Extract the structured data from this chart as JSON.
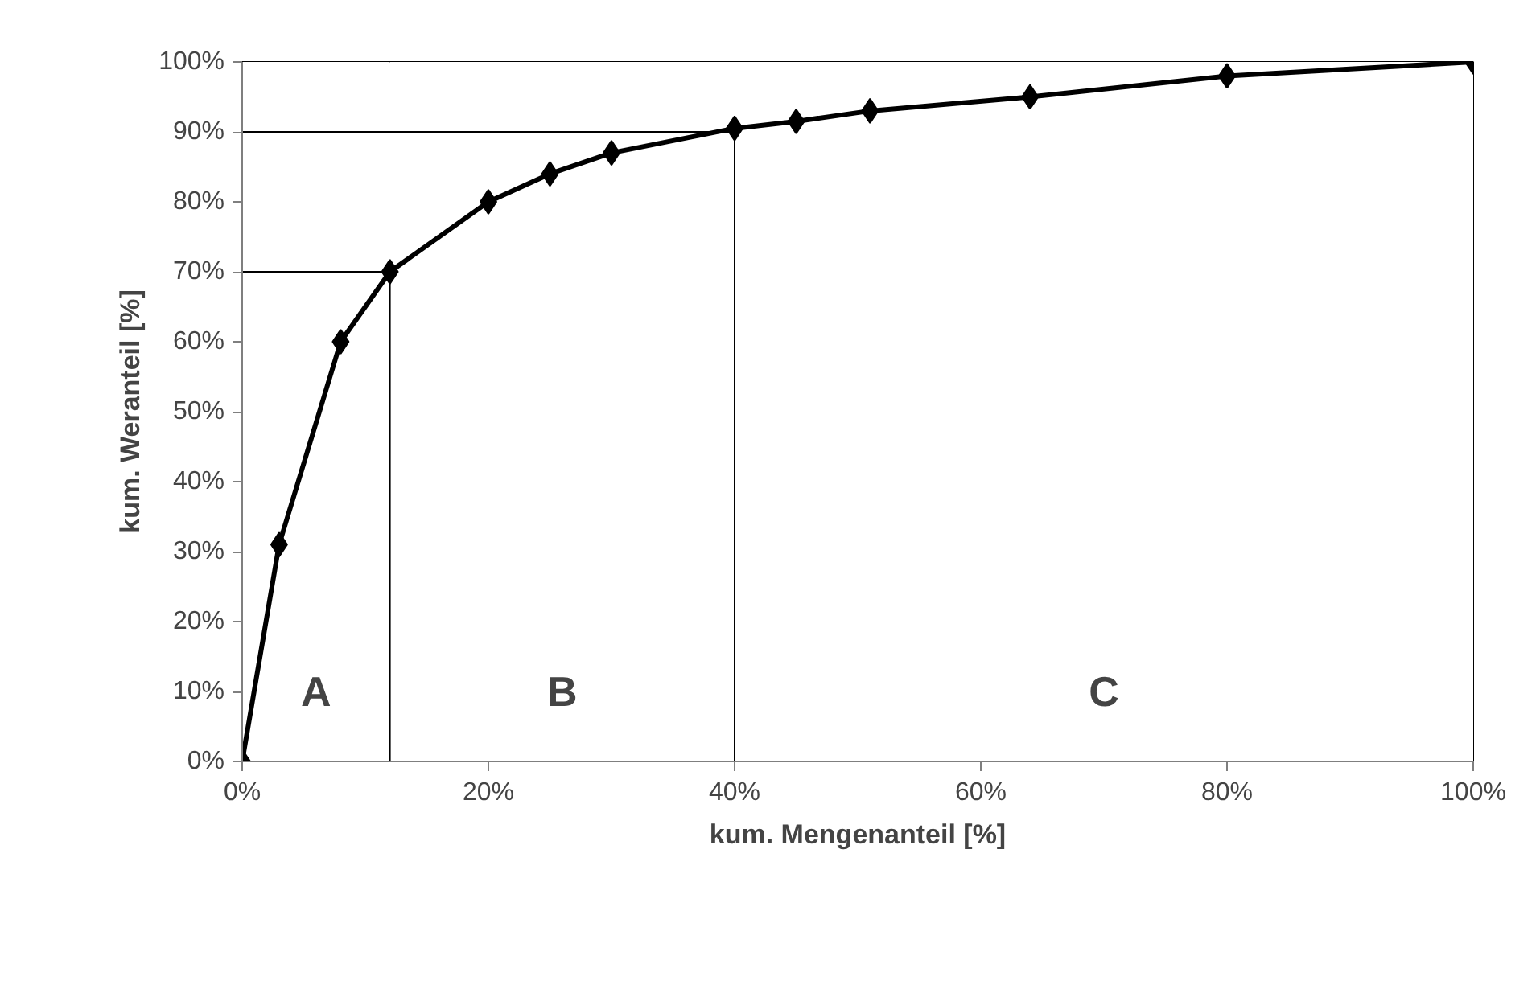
{
  "chart_data": {
    "type": "line",
    "xlabel": "kum. Mengenanteil [%]",
    "ylabel": "kum. Weranteil [%]",
    "marker": "diamond",
    "line_style": "solid",
    "grid": false,
    "x": [
      0,
      3,
      8,
      12,
      20,
      25,
      30,
      40,
      45,
      51,
      64,
      80,
      100
    ],
    "series": [
      {
        "color": "#000000",
        "values": [
          0,
          31,
          60,
          70,
          80,
          84,
          87,
          90.5,
          91.5,
          93,
          95,
          98,
          100
        ]
      },
      {
        "color": "#000000",
        "marker": "none",
        "x": [
          0,
          12,
          12
        ],
        "values": [
          70,
          70,
          0
        ]
      },
      {
        "color": "#000000",
        "marker": "none",
        "x": [
          0,
          40,
          40
        ],
        "values": [
          90,
          90,
          0
        ]
      }
    ],
    "bands": [
      {
        "axis": "x",
        "from": 0,
        "to": 12,
        "label": "A",
        "color": "#ffffff"
      },
      {
        "axis": "x",
        "from": 12,
        "to": 40,
        "label": "B",
        "color": "#ffffff"
      },
      {
        "axis": "x",
        "from": 40,
        "to": 100,
        "label": "C",
        "color": "#ffffff"
      }
    ],
    "xlim": [
      0,
      100
    ],
    "ylim": [
      0,
      100
    ],
    "xticks": [
      {
        "value": 0,
        "label": "0%"
      },
      {
        "value": 20,
        "label": "20%"
      },
      {
        "value": 40,
        "label": "40%"
      },
      {
        "value": 60,
        "label": "60%"
      },
      {
        "value": 80,
        "label": "80%"
      },
      {
        "value": 100,
        "label": "100%"
      }
    ],
    "yticks": [
      {
        "value": 0,
        "label": "0%"
      },
      {
        "value": 10,
        "label": "10%"
      },
      {
        "value": 20,
        "label": "20%"
      },
      {
        "value": 30,
        "label": "30%"
      },
      {
        "value": 40,
        "label": "40%"
      },
      {
        "value": 50,
        "label": "50%"
      },
      {
        "value": 60,
        "label": "60%"
      },
      {
        "value": 70,
        "label": "70%"
      },
      {
        "value": 80,
        "label": "80%"
      },
      {
        "value": 90,
        "label": "90%"
      },
      {
        "value": 100,
        "label": "100%"
      }
    ]
  }
}
